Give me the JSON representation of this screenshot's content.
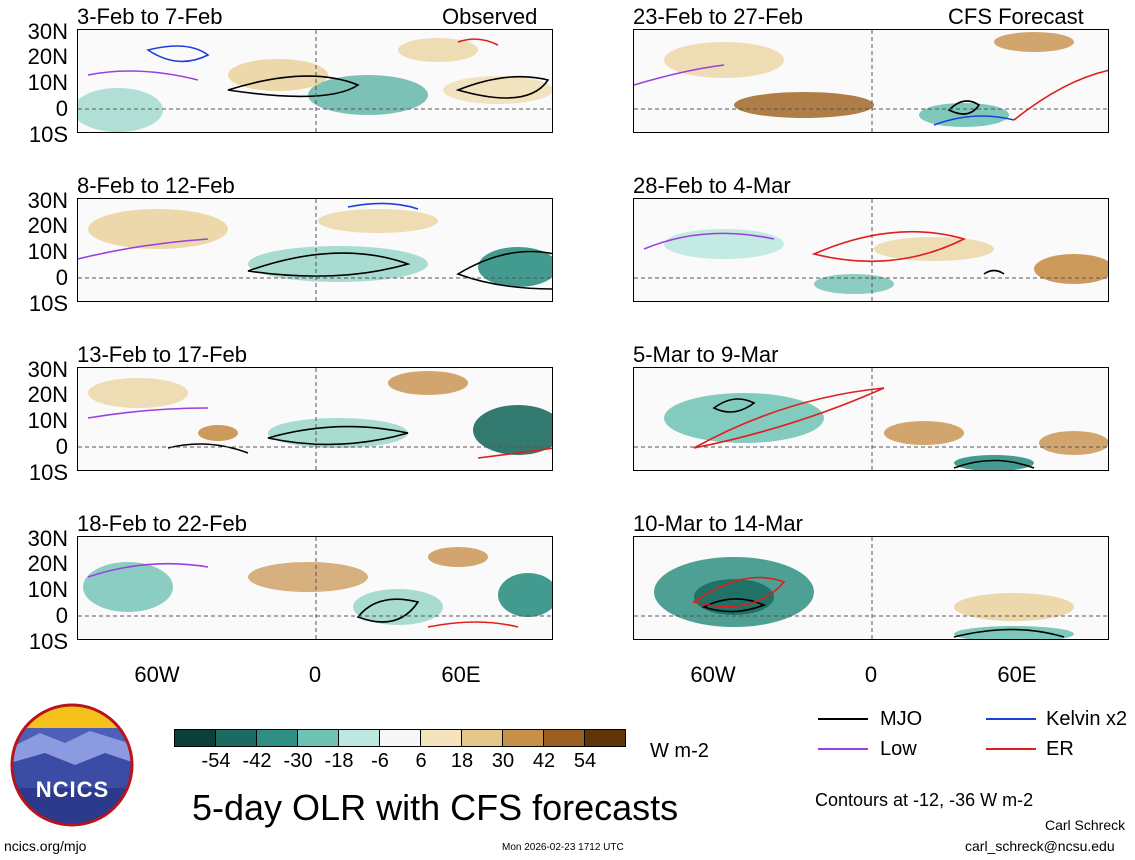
{
  "left_header": "Observed",
  "right_header": "CFS Forecast",
  "lat_labels": [
    "30N",
    "20N",
    "10N",
    "0",
    "10S"
  ],
  "left_panels": [
    {
      "title": "3-Feb to 7-Feb"
    },
    {
      "title": "8-Feb to 12-Feb"
    },
    {
      "title": "13-Feb to 17-Feb"
    },
    {
      "title": "18-Feb to 22-Feb"
    }
  ],
  "right_panels": [
    {
      "title": "23-Feb to 27-Feb"
    },
    {
      "title": "28-Feb to 4-Mar"
    },
    {
      "title": "5-Mar to 9-Mar"
    },
    {
      "title": "10-Mar to 14-Mar"
    }
  ],
  "lon_labels": [
    "60W",
    "0",
    "60E"
  ],
  "colorbar": {
    "colors": [
      "#0b3f38",
      "#1c6b61",
      "#2f8f83",
      "#6fc2b4",
      "#bde8e0",
      "#f7f7f7",
      "#f4e3bd",
      "#e4c88a",
      "#c7904a",
      "#9c5e1c",
      "#5e3608"
    ],
    "labels": [
      "-54",
      "-42",
      "-30",
      "-18",
      "-6",
      "6",
      "18",
      "30",
      "42",
      "54"
    ],
    "units": "W m-2"
  },
  "legend": {
    "items": [
      {
        "label": "MJO",
        "color": "#000000"
      },
      {
        "label": "Kelvin x2",
        "color": "#1f3fd8"
      },
      {
        "label": "Low",
        "color": "#9b3fe0"
      },
      {
        "label": "ER",
        "color": "#e01e1e"
      }
    ],
    "contour_note": "Contours at -12, -36 W m-2"
  },
  "logo_text": "NCICS",
  "main_title": "5-day OLR with CFS forecasts",
  "footer": {
    "url": "ncics.org/mjo",
    "timestamp": "Mon 2026-02-23 1712 UTC",
    "author": "Carl Schreck",
    "email": "carl_schreck@ncsu.edu"
  }
}
